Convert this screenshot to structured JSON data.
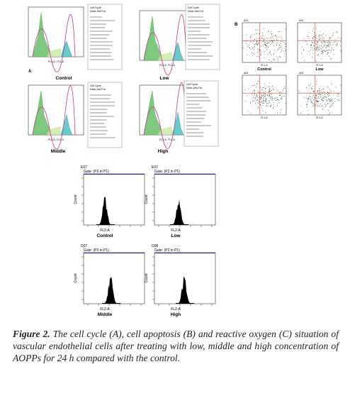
{
  "panel_a": {
    "label": "A",
    "x_axis": "FL2-A : FL2-A",
    "stats_header": [
      "Cell Cycle",
      "Dean-Jett-Fox"
    ],
    "plots": [
      {
        "name": "Control"
      },
      {
        "name": "Low"
      },
      {
        "name": "Middle"
      },
      {
        "name": "High"
      }
    ]
  },
  "panel_b": {
    "label": "B",
    "x_axis": "FL1-A",
    "plots": [
      {
        "id": "A01",
        "name": "Control"
      },
      {
        "id": "A02",
        "name": "Low"
      },
      {
        "id": "A03"
      },
      {
        "id": "A04"
      }
    ]
  },
  "panel_c": {
    "y_axis": "Count",
    "x_axis": "FL2-A",
    "plots": [
      {
        "id": "E07",
        "gate": "Gate: (P2 in P1)",
        "name": "Control"
      },
      {
        "id": "E07",
        "gate": "Gate: (P2 in P1)",
        "name": "Low"
      },
      {
        "id": "D07",
        "gate": "Gate: (P2 in P1)",
        "name": "Middle"
      },
      {
        "id": "D08",
        "gate": "Gate: (P2 in P1)",
        "name": "High"
      }
    ]
  },
  "caption": {
    "figure": "Figure 2.",
    "text": "The cell cycle (A), cell apoptosis (B) and reactive oxygen (C) situation of vascular endothelial cells after treating with low, middle and high concentration of AOPPs for 24 h compared with the control."
  }
}
